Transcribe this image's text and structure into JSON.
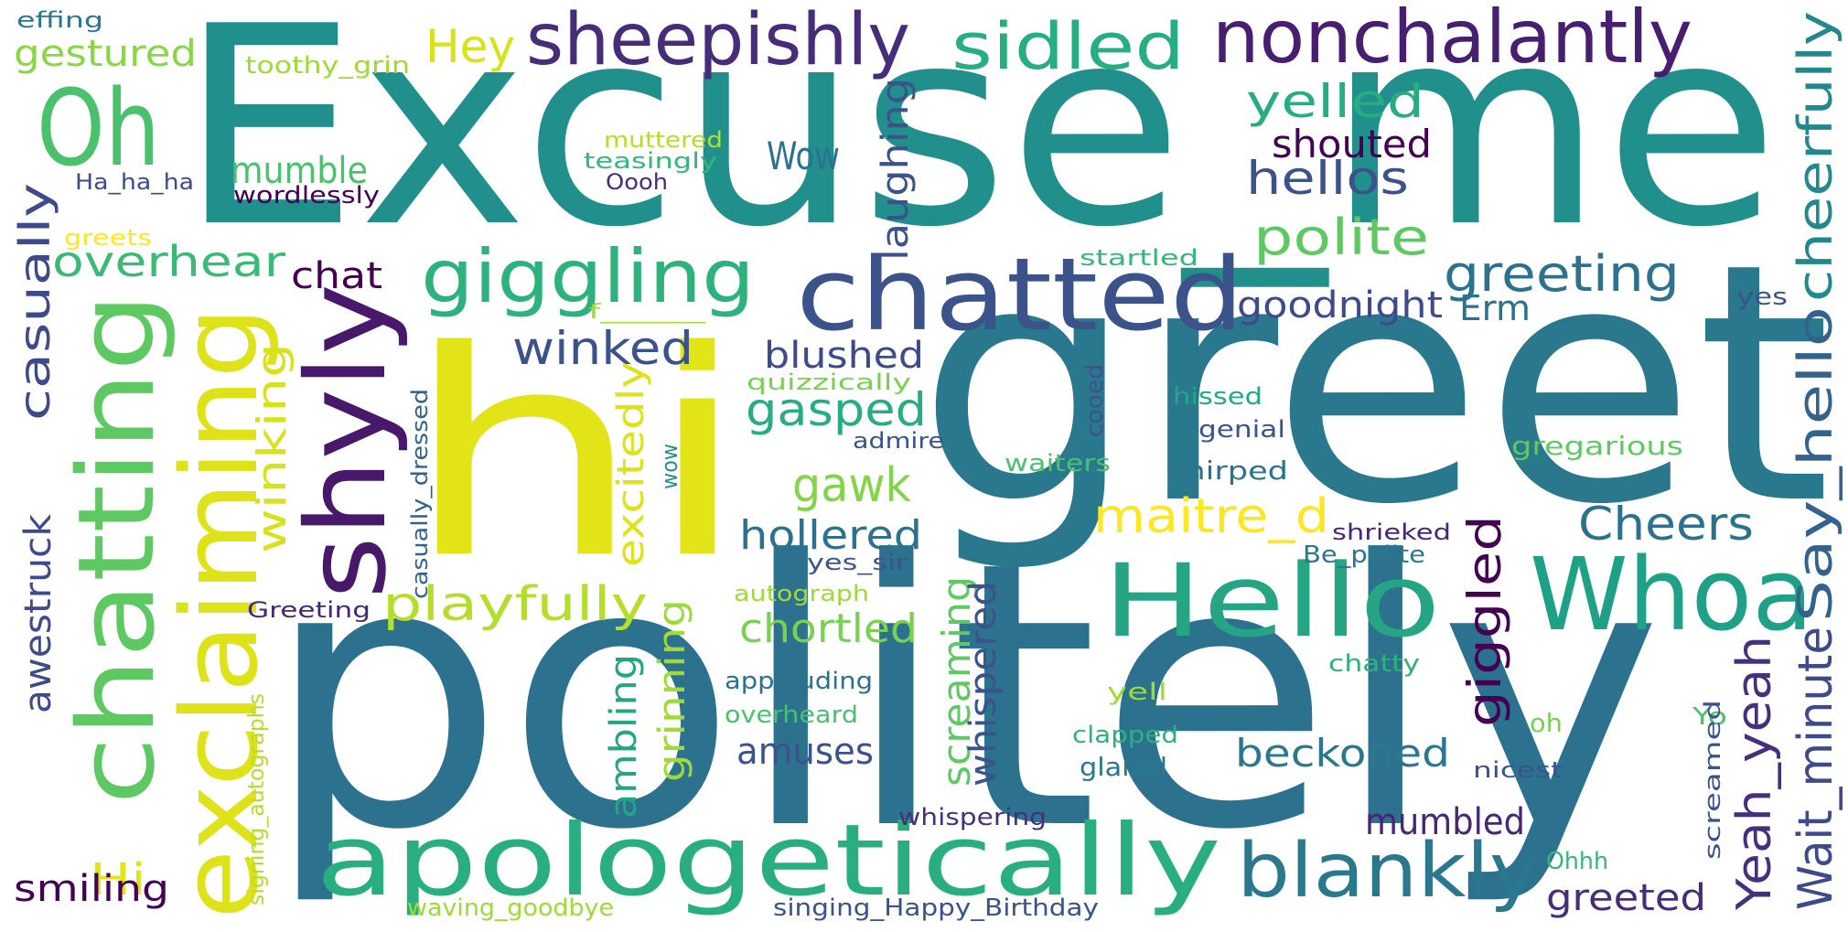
{
  "words": [
    {
      "text": "Excuse_me",
      "color": "#21908d"
    },
    {
      "text": "greet",
      "color": "#2a788e"
    },
    {
      "text": "politely",
      "color": "#2c728e"
    },
    {
      "text": "hi",
      "color": "#e2e418"
    },
    {
      "text": "chatted",
      "color": "#3b528b"
    },
    {
      "text": "Hello",
      "color": "#25a584"
    },
    {
      "text": "Whoa",
      "color": "#1fa188"
    },
    {
      "text": "apologetically",
      "color": "#29af7f"
    },
    {
      "text": "shyly",
      "color": "#48186a"
    },
    {
      "text": "exclaiming",
      "color": "#dde318"
    },
    {
      "text": "chatting",
      "color": "#5ec962"
    },
    {
      "text": "Oh",
      "color": "#4ac16d"
    },
    {
      "text": "sheepishly",
      "color": "#472c7a"
    },
    {
      "text": "nonchalantly",
      "color": "#481f70"
    },
    {
      "text": "sidled",
      "color": "#26ad81"
    },
    {
      "text": "giggling",
      "color": "#2db27d"
    },
    {
      "text": "blankly",
      "color": "#2a788e"
    },
    {
      "text": "cheerfully",
      "color": "#23888e"
    },
    {
      "text": "Say_hello",
      "color": "#33638d"
    },
    {
      "text": "Wait_minute",
      "color": "#3e4a89"
    },
    {
      "text": "Yeah_yeah",
      "color": "#46307e"
    },
    {
      "text": "greeting",
      "color": "#2c728e"
    },
    {
      "text": "yelled",
      "color": "#27ad81"
    },
    {
      "text": "shouted",
      "color": "#440154"
    },
    {
      "text": "hellos",
      "color": "#3b528b"
    },
    {
      "text": "polite",
      "color": "#5ec962"
    },
    {
      "text": "Hey",
      "color": "#d8e219"
    },
    {
      "text": "gestured",
      "color": "#8bd646"
    },
    {
      "text": "casually",
      "color": "#3e4a89"
    },
    {
      "text": "overhear",
      "color": "#3aba76"
    },
    {
      "text": "chat",
      "color": "#440154"
    },
    {
      "text": "winked",
      "color": "#3b528b"
    },
    {
      "text": "Wow",
      "color": "#2c728e"
    },
    {
      "text": "mumble",
      "color": "#4ac16d"
    },
    {
      "text": "laughing",
      "color": "#3b528b"
    },
    {
      "text": "winking",
      "color": "#d8e219"
    },
    {
      "text": "goodnight",
      "color": "#3e4a89"
    },
    {
      "text": "Erm",
      "color": "#2c728e"
    },
    {
      "text": "blushed",
      "color": "#3e4a89"
    },
    {
      "text": "gasped",
      "color": "#26ad81"
    },
    {
      "text": "gawk",
      "color": "#84d44b"
    },
    {
      "text": "maitre_d",
      "color": "#fde725"
    },
    {
      "text": "Cheers",
      "color": "#2c728e"
    },
    {
      "text": "giggled",
      "color": "#440154"
    },
    {
      "text": "hollered",
      "color": "#2c728e"
    },
    {
      "text": "playfully",
      "color": "#b5de2b"
    },
    {
      "text": "chortled",
      "color": "#7ad151"
    },
    {
      "text": "excitedly",
      "color": "#dde318"
    },
    {
      "text": "beckoned",
      "color": "#2a788e"
    },
    {
      "text": "mumbled",
      "color": "#482677"
    },
    {
      "text": "greeted",
      "color": "#472c7a"
    },
    {
      "text": "amuses",
      "color": "#3b528b"
    },
    {
      "text": "Hi",
      "color": "#e2e418"
    },
    {
      "text": "smiling",
      "color": "#440154"
    },
    {
      "text": "awestruck",
      "color": "#3e4a89"
    },
    {
      "text": "screaming",
      "color": "#5ec962"
    },
    {
      "text": "whispered",
      "color": "#3b528b"
    },
    {
      "text": "grinning",
      "color": "#a0da39"
    },
    {
      "text": "ambling",
      "color": "#25a584"
    },
    {
      "text": "Greeting",
      "color": "#482677"
    },
    {
      "text": "effing",
      "color": "#2a788e"
    },
    {
      "text": "toothy_grin",
      "color": "#a0da39"
    },
    {
      "text": "muttered",
      "color": "#b5de2b"
    },
    {
      "text": "teasingly",
      "color": "#35b779"
    },
    {
      "text": "Ha_ha_ha",
      "color": "#3e4a89"
    },
    {
      "text": "wordlessly",
      "color": "#440154"
    },
    {
      "text": "Oooh",
      "color": "#472c7a"
    },
    {
      "text": "greets",
      "color": "#fde725"
    },
    {
      "text": "startled",
      "color": "#35b779"
    },
    {
      "text": "f______",
      "color": "#a0da39"
    },
    {
      "text": "yes",
      "color": "#3b528b"
    },
    {
      "text": "quizzically",
      "color": "#7ad151"
    },
    {
      "text": "hissed",
      "color": "#22a884"
    },
    {
      "text": "cooed",
      "color": "#3b528b"
    },
    {
      "text": "genial",
      "color": "#3b528b"
    },
    {
      "text": "admire",
      "color": "#3b528b"
    },
    {
      "text": "gregarious",
      "color": "#5ec962"
    },
    {
      "text": "wow",
      "color": "#21918c"
    },
    {
      "text": "waiters",
      "color": "#4ac16d"
    },
    {
      "text": "chirped",
      "color": "#2c728e"
    },
    {
      "text": "casually_dressed",
      "color": "#33638d"
    },
    {
      "text": "shrieked",
      "color": "#482677"
    },
    {
      "text": "yes_sir",
      "color": "#3b528b"
    },
    {
      "text": "Be_polite",
      "color": "#2a788e"
    },
    {
      "text": "autograph",
      "color": "#a0da39"
    },
    {
      "text": "signing_autographs",
      "color": "#b5de2b"
    },
    {
      "text": "applauding",
      "color": "#2c728e"
    },
    {
      "text": "chatty",
      "color": "#2db27d"
    },
    {
      "text": "yell",
      "color": "#a0da39"
    },
    {
      "text": "overheard",
      "color": "#4ac16d"
    },
    {
      "text": "Yo",
      "color": "#4ac16d"
    },
    {
      "text": "oh",
      "color": "#7ad151"
    },
    {
      "text": "clapped",
      "color": "#2db27d"
    },
    {
      "text": "glared",
      "color": "#2a788e"
    },
    {
      "text": "nicest",
      "color": "#3b528b"
    },
    {
      "text": "screamed",
      "color": "#3b528b"
    },
    {
      "text": "whispering",
      "color": "#46307e"
    },
    {
      "text": "Ohhh",
      "color": "#35b779"
    },
    {
      "text": "waving_goodbye",
      "color": "#a0da39"
    },
    {
      "text": "singing_Happy_Birthday",
      "color": "#3b528b"
    }
  ]
}
